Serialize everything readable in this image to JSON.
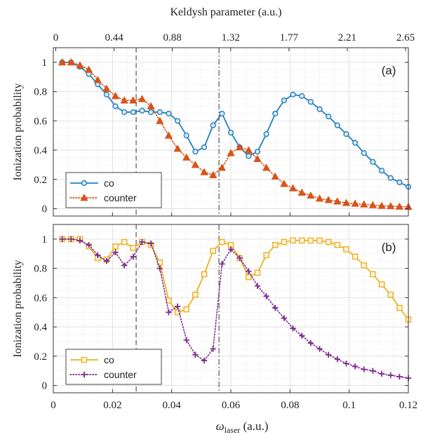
{
  "chart_data": [
    {
      "type": "line",
      "panel_label": "(a)",
      "top_axis_title": "Keldysh parameter (a.u.)",
      "top_ticks": [
        "0",
        "0.44",
        "0.88",
        "1.32",
        "1.77",
        "2.21",
        "2.65"
      ],
      "xlabel": "",
      "ylabel": "Ionization  probability",
      "xlim": [
        0,
        0.12
      ],
      "ylim": [
        -0.05,
        1.1
      ],
      "yticks": [
        "0",
        "0.2",
        "0.4",
        "0.6",
        "0.8",
        "1"
      ],
      "xticks": [],
      "grid": true,
      "legend_position": "bottom-left",
      "vlines": [
        0.028,
        0.056
      ],
      "series": [
        {
          "name": "co",
          "color": "#1f7fbf",
          "marker": "circle",
          "linestyle": "solid",
          "x": [
            0.003,
            0.006,
            0.009,
            0.012,
            0.015,
            0.018,
            0.021,
            0.024,
            0.027,
            0.03,
            0.033,
            0.036,
            0.039,
            0.042,
            0.045,
            0.048,
            0.051,
            0.054,
            0.057,
            0.06,
            0.063,
            0.066,
            0.069,
            0.072,
            0.075,
            0.078,
            0.081,
            0.084,
            0.087,
            0.09,
            0.093,
            0.096,
            0.099,
            0.102,
            0.105,
            0.108,
            0.111,
            0.114,
            0.117,
            0.12
          ],
          "y": [
            1.0,
            1.0,
            0.97,
            0.92,
            0.85,
            0.78,
            0.7,
            0.66,
            0.66,
            0.67,
            0.66,
            0.66,
            0.65,
            0.6,
            0.5,
            0.39,
            0.42,
            0.57,
            0.65,
            0.52,
            0.42,
            0.36,
            0.39,
            0.51,
            0.65,
            0.74,
            0.78,
            0.77,
            0.73,
            0.68,
            0.63,
            0.57,
            0.51,
            0.45,
            0.38,
            0.32,
            0.26,
            0.21,
            0.18,
            0.15
          ]
        },
        {
          "name": "counter",
          "color": "#d95319",
          "marker": "triangle",
          "linestyle": "dotted",
          "x": [
            0.003,
            0.006,
            0.009,
            0.012,
            0.015,
            0.018,
            0.021,
            0.024,
            0.027,
            0.03,
            0.033,
            0.036,
            0.039,
            0.042,
            0.045,
            0.048,
            0.051,
            0.054,
            0.057,
            0.06,
            0.063,
            0.066,
            0.069,
            0.072,
            0.075,
            0.078,
            0.081,
            0.084,
            0.087,
            0.09,
            0.093,
            0.096,
            0.099,
            0.102,
            0.105,
            0.108,
            0.111,
            0.114,
            0.117,
            0.12
          ],
          "y": [
            1.0,
            1.0,
            0.98,
            0.95,
            0.88,
            0.82,
            0.77,
            0.74,
            0.74,
            0.75,
            0.7,
            0.6,
            0.5,
            0.41,
            0.35,
            0.3,
            0.25,
            0.23,
            0.28,
            0.38,
            0.42,
            0.4,
            0.34,
            0.28,
            0.22,
            0.17,
            0.14,
            0.11,
            0.09,
            0.07,
            0.06,
            0.05,
            0.04,
            0.035,
            0.03,
            0.025,
            0.02,
            0.018,
            0.015,
            0.013
          ]
        }
      ]
    },
    {
      "type": "line",
      "panel_label": "(b)",
      "xlabel_main": "ω",
      "xlabel_sub": "laser",
      "xlabel_unit": " (a.u.)",
      "ylabel": "Ionization  probability",
      "xlim": [
        0,
        0.12
      ],
      "ylim": [
        -0.05,
        1.1
      ],
      "yticks": [
        "0",
        "0.2",
        "0.4",
        "0.6",
        "0.8",
        "1"
      ],
      "xticks": [
        "0",
        "0.02",
        "0.04",
        "0.06",
        "0.08",
        "0.1",
        "0.12"
      ],
      "grid": true,
      "legend_position": "bottom-left",
      "vlines": [
        0.028,
        0.056
      ],
      "series": [
        {
          "name": "co",
          "color": "#edb120",
          "marker": "square",
          "linestyle": "solid",
          "x": [
            0.003,
            0.006,
            0.009,
            0.012,
            0.015,
            0.018,
            0.021,
            0.024,
            0.027,
            0.03,
            0.033,
            0.036,
            0.039,
            0.042,
            0.045,
            0.048,
            0.051,
            0.054,
            0.057,
            0.06,
            0.063,
            0.066,
            0.069,
            0.072,
            0.075,
            0.078,
            0.081,
            0.084,
            0.087,
            0.09,
            0.093,
            0.096,
            0.099,
            0.102,
            0.105,
            0.108,
            0.111,
            0.114,
            0.117,
            0.12
          ],
          "y": [
            1.0,
            1.0,
            1.0,
            0.95,
            0.87,
            0.86,
            0.95,
            0.98,
            0.94,
            0.98,
            0.96,
            0.84,
            0.58,
            0.5,
            0.52,
            0.62,
            0.76,
            0.92,
            0.98,
            0.96,
            0.87,
            0.74,
            0.77,
            0.89,
            0.96,
            0.98,
            0.99,
            0.99,
            0.99,
            0.99,
            0.98,
            0.96,
            0.93,
            0.88,
            0.82,
            0.76,
            0.69,
            0.62,
            0.53,
            0.45
          ]
        },
        {
          "name": "counter",
          "color": "#7e2f8e",
          "marker": "plus",
          "linestyle": "dotted",
          "x": [
            0.003,
            0.006,
            0.009,
            0.012,
            0.015,
            0.018,
            0.021,
            0.024,
            0.027,
            0.03,
            0.033,
            0.036,
            0.039,
            0.042,
            0.045,
            0.048,
            0.051,
            0.054,
            0.057,
            0.06,
            0.063,
            0.066,
            0.069,
            0.072,
            0.075,
            0.078,
            0.081,
            0.084,
            0.087,
            0.09,
            0.093,
            0.096,
            0.099,
            0.102,
            0.105,
            0.108,
            0.111,
            0.114,
            0.117,
            0.12
          ],
          "y": [
            1.0,
            1.0,
            0.99,
            0.96,
            0.89,
            0.85,
            0.91,
            0.82,
            0.88,
            0.98,
            0.97,
            0.8,
            0.5,
            0.54,
            0.31,
            0.21,
            0.17,
            0.25,
            0.83,
            0.93,
            0.87,
            0.78,
            0.68,
            0.61,
            0.53,
            0.46,
            0.39,
            0.34,
            0.29,
            0.25,
            0.21,
            0.18,
            0.15,
            0.13,
            0.11,
            0.1,
            0.08,
            0.07,
            0.06,
            0.05
          ]
        }
      ]
    }
  ]
}
